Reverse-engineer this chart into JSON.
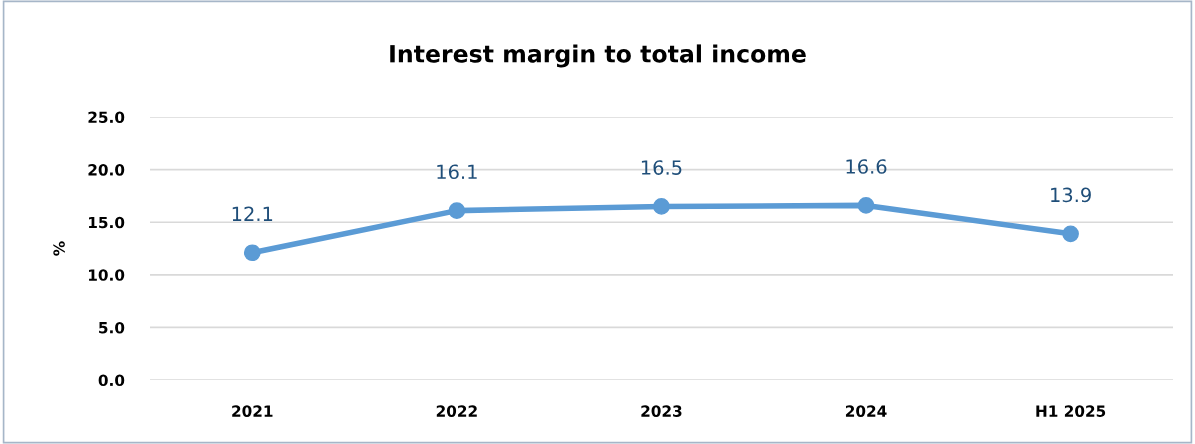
{
  "chart_data": {
    "type": "line",
    "title": "Interest margin to total income",
    "ylabel": "%",
    "categories": [
      "2021",
      "2022",
      "2023",
      "2024",
      "H1 2025"
    ],
    "series": [
      {
        "color": "#5b9bd5",
        "values": [
          12.1,
          16.1,
          16.5,
          16.6,
          13.9
        ]
      }
    ],
    "ylim": [
      0,
      25
    ],
    "yticks": [
      {
        "value": 0,
        "label": "0.0"
      },
      {
        "value": 5,
        "label": "5.0"
      },
      {
        "value": 10,
        "label": "10.0"
      },
      {
        "value": 15,
        "label": "15.0"
      },
      {
        "value": 20,
        "label": "20.0"
      },
      {
        "value": 25,
        "label": "25.0"
      }
    ],
    "grid": "y",
    "marker": "circle",
    "line_style": "solid",
    "data_labels": true
  }
}
